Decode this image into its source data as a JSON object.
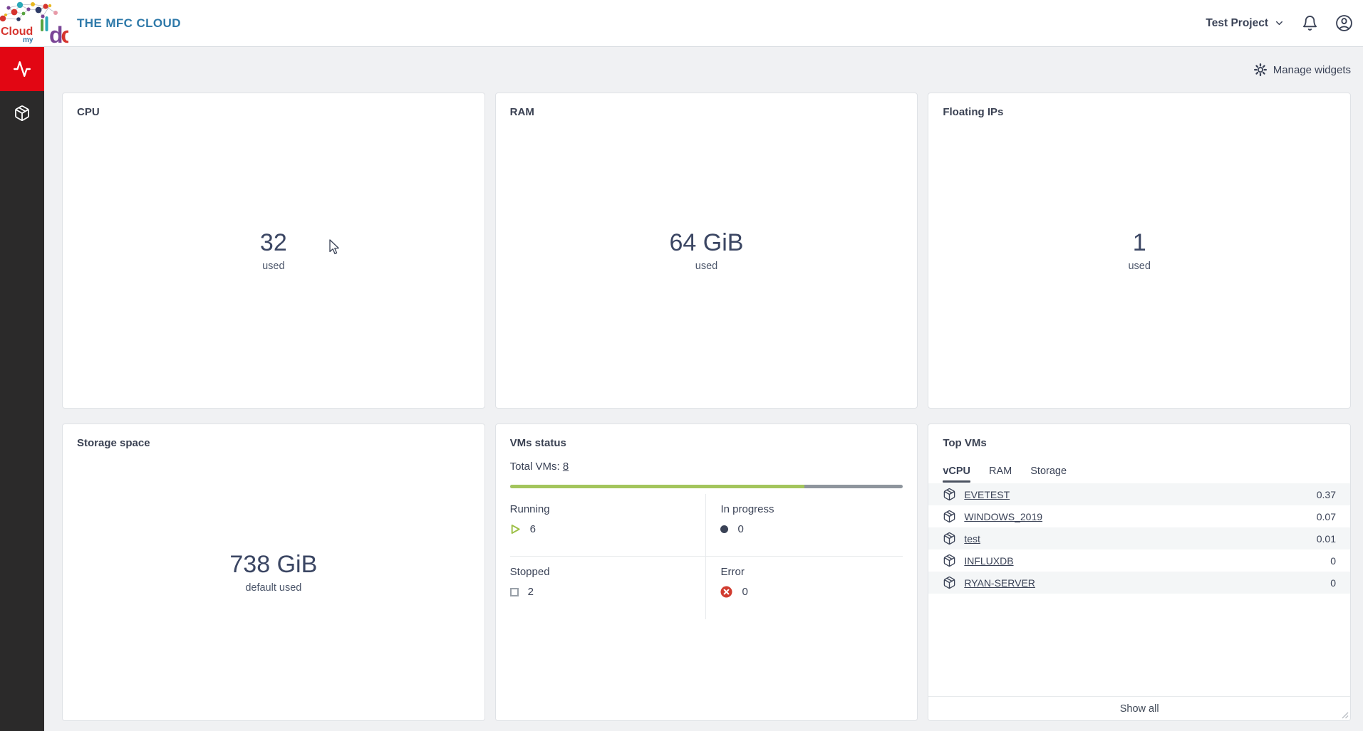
{
  "header": {
    "brand": "THE MFC CLOUD",
    "logo": {
      "cloud": "Cloud",
      "my": "my",
      "dc": "dc"
    },
    "project": "Test Project"
  },
  "toolbar": {
    "manage_widgets": "Manage widgets"
  },
  "cards": {
    "cpu": {
      "title": "CPU",
      "value": "32",
      "caption": "used"
    },
    "ram": {
      "title": "RAM",
      "value": "64 GiB",
      "caption": "used"
    },
    "floating_ips": {
      "title": "Floating IPs",
      "value": "1",
      "caption": "used"
    },
    "storage": {
      "title": "Storage space",
      "value": "738 GiB",
      "caption": "default used"
    },
    "vms_status": {
      "title": "VMs status",
      "total_label": "Total VMs:",
      "total_link": "8",
      "progress_running_percent": 75,
      "statuses": [
        {
          "label": "Running",
          "count": "6",
          "icon": "play-icon"
        },
        {
          "label": "In progress",
          "count": "0",
          "icon": "dot-icon"
        },
        {
          "label": "Stopped",
          "count": "2",
          "icon": "square-icon"
        },
        {
          "label": "Error",
          "count": "0",
          "icon": "error-icon"
        }
      ]
    },
    "top_vms": {
      "title": "Top VMs",
      "active_tab": "vCPU",
      "tabs": [
        {
          "label": "vCPU"
        },
        {
          "label": "RAM"
        },
        {
          "label": "Storage"
        }
      ],
      "rows": [
        {
          "icon": "vm-cube-icon",
          "name": "EVETEST",
          "value": "0.37"
        },
        {
          "icon": "vm-cube-icon",
          "name": "WINDOWS_2019",
          "value": "0.07"
        },
        {
          "icon": "vm-cube-icon",
          "name": "test",
          "value": "0.01"
        },
        {
          "icon": "vm-cube-icon",
          "name": "INFLUXDB",
          "value": "0"
        },
        {
          "icon": "vm-cube-icon",
          "name": "RYAN-SERVER",
          "value": "0"
        }
      ],
      "footer": "Show all"
    }
  },
  "colors": {
    "accent_red": "#e20613",
    "brand_blue": "#2e79a9",
    "progress_green": "#a3c55c",
    "progress_gray": "#8e959d",
    "error_red": "#d13c30",
    "text_primary": "#3a4256",
    "sidebar_bg": "#2b2a2a"
  }
}
